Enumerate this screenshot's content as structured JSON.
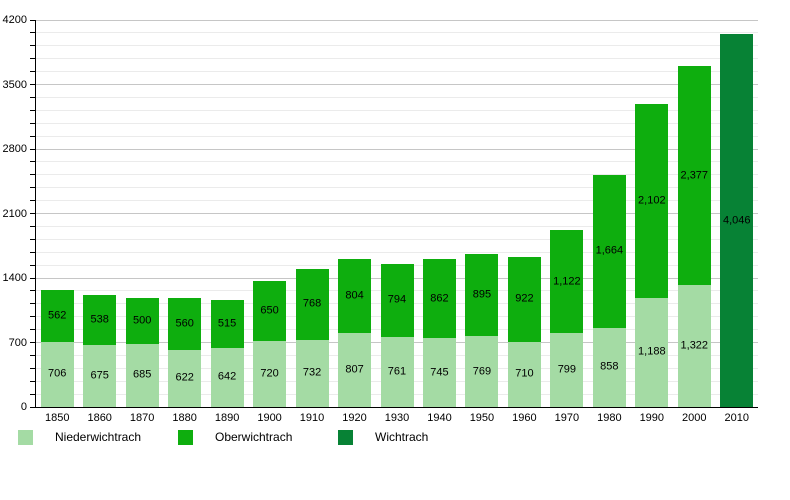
{
  "chart_data": {
    "type": "bar",
    "stacked": true,
    "title": "",
    "xlabel": "",
    "ylabel": "",
    "grid": true,
    "legend_position": "bottom",
    "ylim": [
      0,
      4200
    ],
    "y_major_step": 700,
    "y_minor_step": 140,
    "y_tick_labels": [
      "0",
      "700",
      "1400",
      "2100",
      "2800",
      "3500",
      "4200"
    ],
    "categories": [
      "1850",
      "1860",
      "1870",
      "1880",
      "1890",
      "1900",
      "1910",
      "1920",
      "1930",
      "1940",
      "1950",
      "1960",
      "1970",
      "1980",
      "1990",
      "2000",
      "2010"
    ],
    "series": [
      {
        "name": "Niederwichtrach",
        "color": "#a4dba4",
        "values": [
          706,
          675,
          685,
          622,
          642,
          720,
          732,
          807,
          761,
          745,
          769,
          710,
          799,
          858,
          1188,
          1322,
          null
        ]
      },
      {
        "name": "Oberwichtrach",
        "color": "#0eae0e",
        "values": [
          562,
          538,
          500,
          560,
          515,
          650,
          768,
          804,
          794,
          862,
          895,
          922,
          1122,
          1664,
          2102,
          2377,
          null
        ]
      },
      {
        "name": "Wichtrach",
        "color": "#078235",
        "values": [
          null,
          null,
          null,
          null,
          null,
          null,
          null,
          null,
          null,
          null,
          null,
          null,
          null,
          null,
          null,
          null,
          4046
        ]
      }
    ],
    "value_labels_shown": true,
    "bar_value_labels": [
      [
        "706",
        "675",
        "685",
        "622",
        "642",
        "720",
        "732",
        "807",
        "761",
        "745",
        "769",
        "710",
        "799",
        "858",
        "1,188",
        "1,322"
      ],
      [
        "562",
        "538",
        "500",
        "560",
        "515",
        "650",
        "768",
        "804",
        "794",
        "862",
        "895",
        "922",
        "1,122",
        "1,664",
        "2,102",
        "2,377"
      ],
      [
        "4,046"
      ]
    ],
    "axis_color": "#000000",
    "gridline_minor_color": "#ebebeb",
    "gridline_major_color": "#c6c6c6"
  },
  "legend": {
    "items": [
      {
        "label": "Niederwichtrach",
        "color": "#a4dba4"
      },
      {
        "label": "Oberwichtrach",
        "color": "#0eae0e"
      },
      {
        "label": "Wichtrach",
        "color": "#078235"
      }
    ]
  }
}
